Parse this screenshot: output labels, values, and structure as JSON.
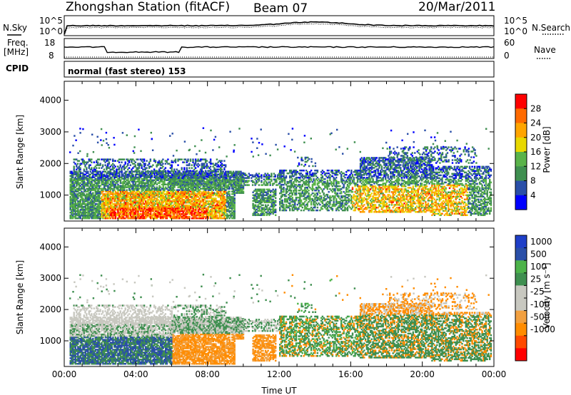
{
  "header": {
    "station": "Zhongshan Station (fitACF)",
    "beam": "Beam 07",
    "date": "20/Mar/2011"
  },
  "noise_panel": {
    "left_label": "N.Sky",
    "y_top_label": "10^5",
    "y_bottom_label": "10^0",
    "right_label": "N.Search",
    "right_y_top_label": "10^5",
    "right_y_bottom_label": "10^0"
  },
  "freq_panel": {
    "left_label_1": "Freq.",
    "left_label_2": "[MHz]",
    "y_top_label": "18",
    "y_bottom_label": "8",
    "right_label": "Nave",
    "right_y_top_label": "60",
    "right_y_bottom_label": "0"
  },
  "cpid": {
    "label": "CPID",
    "text": "normal (fast stereo) 153"
  },
  "colors": {
    "power_scale": [
      "#0000ff",
      "#2a4fa8",
      "#3f8f50",
      "#5ab34a",
      "#e8d800",
      "#ffa500",
      "#ff6a00",
      "#ff0000"
    ],
    "velocity_scale": [
      "#ff0000",
      "#ff4a00",
      "#ff8c00",
      "#f2a040",
      "#c8c8c0",
      "#c8c8c0",
      "#3f8f50",
      "#4db34a",
      "#2a4fa8",
      "#1f3fc8"
    ]
  },
  "chart_data": [
    {
      "type": "heatmap",
      "name": "power",
      "ylabel": "Slant Range [km]",
      "xlabel": "",
      "y_ticks": [
        "1000",
        "2000",
        "3000",
        "4000"
      ],
      "x_ticks": [
        "00:00",
        "04:00",
        "08:00",
        "12:00",
        "16:00",
        "20:00",
        "00:00"
      ],
      "ylim": [
        180,
        4600
      ],
      "xlim": [
        0,
        24
      ],
      "colorbar": {
        "label": "Power [dB]",
        "ticks": [
          "4",
          "8",
          "12",
          "16",
          "20",
          "24",
          "28"
        ],
        "range": [
          0,
          32
        ]
      }
    },
    {
      "type": "heatmap",
      "name": "velocity",
      "ylabel": "Slant Range [km]",
      "xlabel": "Time UT",
      "y_ticks": [
        "1000",
        "2000",
        "3000",
        "4000"
      ],
      "x_ticks": [
        "00:00",
        "04:00",
        "08:00",
        "12:00",
        "16:00",
        "20:00",
        "00:00"
      ],
      "ylim": [
        180,
        4600
      ],
      "xlim": [
        0,
        24
      ],
      "colorbar": {
        "label": "Velocity [m s⁻¹]",
        "ticks": [
          "1000",
          "500",
          "100",
          "25",
          "-25",
          "-100",
          "-500",
          "-1000"
        ],
        "range": [
          -1200,
          1200
        ]
      }
    }
  ]
}
